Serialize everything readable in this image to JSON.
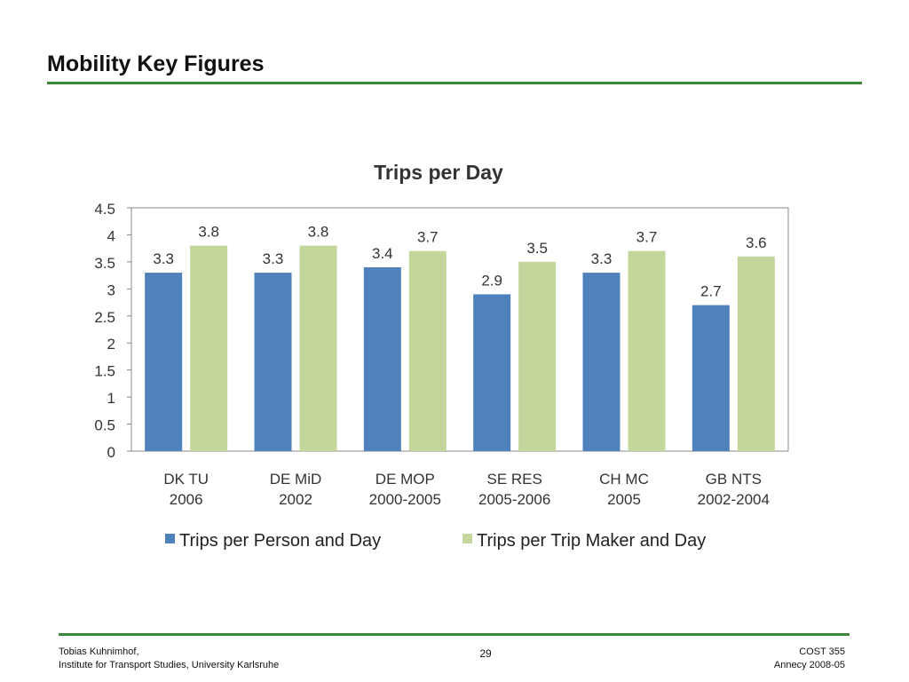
{
  "slide": {
    "title": "Mobility Key Figures",
    "page_number": "29"
  },
  "footer": {
    "author": "Tobias Kuhnimhof,",
    "institute": "Institute for Transport Studies, University Karlsruhe",
    "event": "COST 355",
    "event_date": "Annecy 2008-05"
  },
  "chart_data": {
    "type": "bar",
    "title": "Trips per Day",
    "categories": [
      [
        "DK TU",
        "2006"
      ],
      [
        "DE MiD",
        "2002"
      ],
      [
        "DE MOP",
        "2000-2005"
      ],
      [
        "SE RES",
        "2005-2006"
      ],
      [
        "CH MC",
        "2005"
      ],
      [
        "GB NTS",
        "2002-2004"
      ]
    ],
    "series": [
      {
        "name": "Trips per Person and Day",
        "color": "#4f81bd",
        "values": [
          3.3,
          3.3,
          3.4,
          2.9,
          3.3,
          2.7
        ]
      },
      {
        "name": "Trips per Trip Maker and Day",
        "color": "#c3d69b",
        "values": [
          3.8,
          3.8,
          3.7,
          3.5,
          3.7,
          3.6
        ]
      }
    ],
    "ylim": [
      0,
      4.5
    ],
    "yticks": [
      "0",
      "0.5",
      "1",
      "1.5",
      "2",
      "2.5",
      "3",
      "3.5",
      "4",
      "4.5"
    ],
    "ytick_values": [
      0,
      0.5,
      1,
      1.5,
      2,
      2.5,
      3,
      3.5,
      4,
      4.5
    ],
    "grid": false,
    "legend_position": "bottom"
  }
}
